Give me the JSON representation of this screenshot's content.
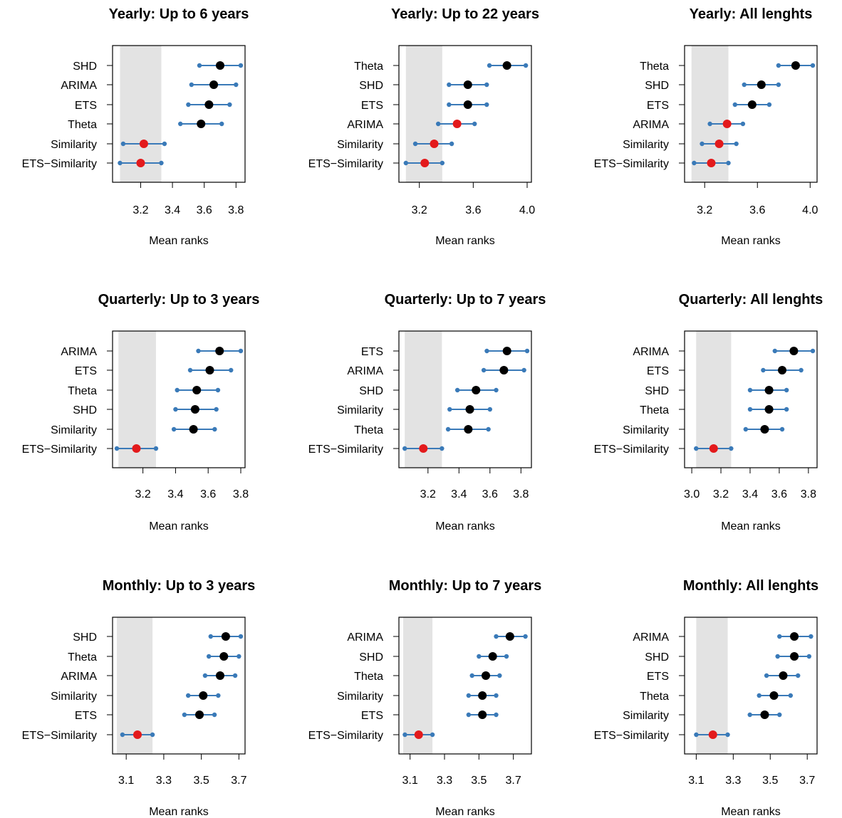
{
  "figure": {
    "type": "dot-interval",
    "axis_title": "Mean ranks"
  },
  "colors": {
    "ci_line": "#3a7ab8",
    "ci_end": "#3a7ab8",
    "point_default": "#000000",
    "point_highlight": "#e31a1c",
    "shade": "#e3e3e3"
  },
  "chart_data": [
    {
      "type": "scatter",
      "title": "Yearly: Up to 6 years",
      "xlabel": "Mean ranks",
      "xlim": [
        3.05,
        3.83
      ],
      "xticks": [
        3.2,
        3.4,
        3.6,
        3.8
      ],
      "xtick_labels": [
        "3.2",
        "3.4",
        "3.6",
        "3.8"
      ],
      "shade": [
        3.07,
        3.33
      ],
      "rows": [
        {
          "label": "SHD",
          "mean": 3.7,
          "low": 3.57,
          "high": 3.83,
          "highlight": false
        },
        {
          "label": "ARIMA",
          "mean": 3.66,
          "low": 3.52,
          "high": 3.8,
          "highlight": false
        },
        {
          "label": "ETS",
          "mean": 3.63,
          "low": 3.5,
          "high": 3.76,
          "highlight": false
        },
        {
          "label": "Theta",
          "mean": 3.58,
          "low": 3.45,
          "high": 3.71,
          "highlight": false
        },
        {
          "label": "Similarity",
          "mean": 3.22,
          "low": 3.09,
          "high": 3.35,
          "highlight": true
        },
        {
          "label": "ETS−Similarity",
          "mean": 3.2,
          "low": 3.07,
          "high": 3.33,
          "highlight": true
        }
      ]
    },
    {
      "type": "scatter",
      "title": "Yearly: Up to 22 years",
      "xlabel": "Mean ranks",
      "xlim": [
        3.08,
        4.0
      ],
      "xticks": [
        3.2,
        3.6,
        4.0
      ],
      "xtick_labels": [
        "3.2",
        "3.6",
        "4.0"
      ],
      "shade": [
        3.1,
        3.37
      ],
      "rows": [
        {
          "label": "Theta",
          "mean": 3.85,
          "low": 3.72,
          "high": 3.99,
          "highlight": false
        },
        {
          "label": "SHD",
          "mean": 3.56,
          "low": 3.42,
          "high": 3.7,
          "highlight": false
        },
        {
          "label": "ETS",
          "mean": 3.56,
          "low": 3.42,
          "high": 3.7,
          "highlight": false
        },
        {
          "label": "ARIMA",
          "mean": 3.48,
          "low": 3.34,
          "high": 3.61,
          "highlight": true
        },
        {
          "label": "Similarity",
          "mean": 3.31,
          "low": 3.17,
          "high": 3.44,
          "highlight": true
        },
        {
          "label": "ETS−Similarity",
          "mean": 3.24,
          "low": 3.1,
          "high": 3.37,
          "highlight": true
        }
      ]
    },
    {
      "type": "scatter",
      "title": "Yearly: All lenghts",
      "xlabel": "Mean ranks",
      "xlim": [
        3.08,
        4.02
      ],
      "xticks": [
        3.2,
        3.6,
        4.0
      ],
      "xtick_labels": [
        "3.2",
        "3.6",
        "4.0"
      ],
      "shade": [
        3.1,
        3.38
      ],
      "rows": [
        {
          "label": "Theta",
          "mean": 3.89,
          "low": 3.76,
          "high": 4.02,
          "highlight": false
        },
        {
          "label": "SHD",
          "mean": 3.63,
          "low": 3.5,
          "high": 3.76,
          "highlight": false
        },
        {
          "label": "ETS",
          "mean": 3.56,
          "low": 3.43,
          "high": 3.69,
          "highlight": false
        },
        {
          "label": "ARIMA",
          "mean": 3.37,
          "low": 3.24,
          "high": 3.49,
          "highlight": true
        },
        {
          "label": "Similarity",
          "mean": 3.31,
          "low": 3.18,
          "high": 3.44,
          "highlight": true
        },
        {
          "label": "ETS−Similarity",
          "mean": 3.25,
          "low": 3.12,
          "high": 3.38,
          "highlight": true
        }
      ]
    },
    {
      "type": "scatter",
      "title": "Quarterly: Up to 3 years",
      "xlabel": "Mean ranks",
      "xlim": [
        3.04,
        3.8
      ],
      "xticks": [
        3.2,
        3.4,
        3.6,
        3.8
      ],
      "xtick_labels": [
        "3.2",
        "3.4",
        "3.6",
        "3.8"
      ],
      "shade": [
        3.05,
        3.28
      ],
      "rows": [
        {
          "label": "ARIMA",
          "mean": 3.67,
          "low": 3.54,
          "high": 3.8,
          "highlight": false
        },
        {
          "label": "ETS",
          "mean": 3.61,
          "low": 3.49,
          "high": 3.74,
          "highlight": false
        },
        {
          "label": "Theta",
          "mean": 3.53,
          "low": 3.41,
          "high": 3.66,
          "highlight": false
        },
        {
          "label": "SHD",
          "mean": 3.52,
          "low": 3.4,
          "high": 3.65,
          "highlight": false
        },
        {
          "label": "Similarity",
          "mean": 3.51,
          "low": 3.39,
          "high": 3.64,
          "highlight": false
        },
        {
          "label": "ETS−Similarity",
          "mean": 3.16,
          "low": 3.04,
          "high": 3.28,
          "highlight": true
        }
      ]
    },
    {
      "type": "scatter",
      "title": "Quarterly: Up to 7 years",
      "xlabel": "Mean ranks",
      "xlim": [
        3.04,
        3.84
      ],
      "xticks": [
        3.2,
        3.4,
        3.6,
        3.8
      ],
      "xtick_labels": [
        "3.2",
        "3.4",
        "3.6",
        "3.8"
      ],
      "shade": [
        3.05,
        3.29
      ],
      "rows": [
        {
          "label": "ETS",
          "mean": 3.71,
          "low": 3.58,
          "high": 3.84,
          "highlight": false
        },
        {
          "label": "ARIMA",
          "mean": 3.69,
          "low": 3.56,
          "high": 3.82,
          "highlight": false
        },
        {
          "label": "SHD",
          "mean": 3.51,
          "low": 3.39,
          "high": 3.64,
          "highlight": false
        },
        {
          "label": "Similarity",
          "mean": 3.47,
          "low": 3.34,
          "high": 3.6,
          "highlight": false
        },
        {
          "label": "Theta",
          "mean": 3.46,
          "low": 3.33,
          "high": 3.59,
          "highlight": false
        },
        {
          "label": "ETS−Similarity",
          "mean": 3.17,
          "low": 3.05,
          "high": 3.29,
          "highlight": true
        }
      ]
    },
    {
      "type": "scatter",
      "title": "Quarterly: All lenghts",
      "xlabel": "Mean ranks",
      "xlim": [
        2.98,
        3.83
      ],
      "xticks": [
        3.0,
        3.2,
        3.4,
        3.6,
        3.8
      ],
      "xtick_labels": [
        "3.0",
        "3.2",
        "3.4",
        "3.6",
        "3.8"
      ],
      "shade": [
        3.03,
        3.27
      ],
      "rows": [
        {
          "label": "ARIMA",
          "mean": 3.7,
          "low": 3.57,
          "high": 3.83,
          "highlight": false
        },
        {
          "label": "ETS",
          "mean": 3.62,
          "low": 3.49,
          "high": 3.75,
          "highlight": false
        },
        {
          "label": "SHD",
          "mean": 3.53,
          "low": 3.4,
          "high": 3.65,
          "highlight": false
        },
        {
          "label": "Theta",
          "mean": 3.53,
          "low": 3.4,
          "high": 3.65,
          "highlight": false
        },
        {
          "label": "Similarity",
          "mean": 3.5,
          "low": 3.37,
          "high": 3.62,
          "highlight": false
        },
        {
          "label": "ETS−Similarity",
          "mean": 3.15,
          "low": 3.03,
          "high": 3.27,
          "highlight": true
        }
      ]
    },
    {
      "type": "scatter",
      "title": "Monthly: Up to 3 years",
      "xlabel": "Mean ranks",
      "xlim": [
        3.05,
        3.71
      ],
      "xticks": [
        3.1,
        3.3,
        3.5,
        3.7
      ],
      "xtick_labels": [
        "3.1",
        "3.3",
        "3.5",
        "3.7"
      ],
      "shade": [
        3.05,
        3.24
      ],
      "rows": [
        {
          "label": "SHD",
          "mean": 3.63,
          "low": 3.55,
          "high": 3.71,
          "highlight": false
        },
        {
          "label": "Theta",
          "mean": 3.62,
          "low": 3.54,
          "high": 3.7,
          "highlight": false
        },
        {
          "label": "ARIMA",
          "mean": 3.6,
          "low": 3.52,
          "high": 3.68,
          "highlight": false
        },
        {
          "label": "Similarity",
          "mean": 3.51,
          "low": 3.43,
          "high": 3.59,
          "highlight": false
        },
        {
          "label": "ETS",
          "mean": 3.49,
          "low": 3.41,
          "high": 3.57,
          "highlight": false
        },
        {
          "label": "ETS−Similarity",
          "mean": 3.16,
          "low": 3.08,
          "high": 3.24,
          "highlight": true
        }
      ]
    },
    {
      "type": "scatter",
      "title": "Monthly: Up to 7 years",
      "xlabel": "Mean ranks",
      "xlim": [
        3.06,
        3.78
      ],
      "xticks": [
        3.1,
        3.3,
        3.5,
        3.7
      ],
      "xtick_labels": [
        "3.1",
        "3.3",
        "3.5",
        "3.7"
      ],
      "shade": [
        3.06,
        3.23
      ],
      "rows": [
        {
          "label": "ARIMA",
          "mean": 3.68,
          "low": 3.6,
          "high": 3.77,
          "highlight": false
        },
        {
          "label": "SHD",
          "mean": 3.58,
          "low": 3.5,
          "high": 3.66,
          "highlight": false
        },
        {
          "label": "Theta",
          "mean": 3.54,
          "low": 3.46,
          "high": 3.62,
          "highlight": false
        },
        {
          "label": "Similarity",
          "mean": 3.52,
          "low": 3.44,
          "high": 3.6,
          "highlight": false
        },
        {
          "label": "ETS",
          "mean": 3.52,
          "low": 3.44,
          "high": 3.6,
          "highlight": false
        },
        {
          "label": "ETS−Similarity",
          "mean": 3.15,
          "low": 3.07,
          "high": 3.23,
          "highlight": true
        }
      ]
    },
    {
      "type": "scatter",
      "title": "Monthly: All lenghts",
      "xlabel": "Mean ranks",
      "xlim": [
        3.06,
        3.73
      ],
      "xticks": [
        3.1,
        3.3,
        3.5,
        3.7
      ],
      "xtick_labels": [
        "3.1",
        "3.3",
        "3.5",
        "3.7"
      ],
      "shade": [
        3.1,
        3.27
      ],
      "rows": [
        {
          "label": "ARIMA",
          "mean": 3.63,
          "low": 3.55,
          "high": 3.72,
          "highlight": false
        },
        {
          "label": "SHD",
          "mean": 3.63,
          "low": 3.54,
          "high": 3.71,
          "highlight": false
        },
        {
          "label": "ETS",
          "mean": 3.57,
          "low": 3.48,
          "high": 3.65,
          "highlight": false
        },
        {
          "label": "Theta",
          "mean": 3.52,
          "low": 3.44,
          "high": 3.61,
          "highlight": false
        },
        {
          "label": "Similarity",
          "mean": 3.47,
          "low": 3.39,
          "high": 3.55,
          "highlight": false
        },
        {
          "label": "ETS−Similarity",
          "mean": 3.19,
          "low": 3.1,
          "high": 3.27,
          "highlight": true
        }
      ]
    }
  ]
}
